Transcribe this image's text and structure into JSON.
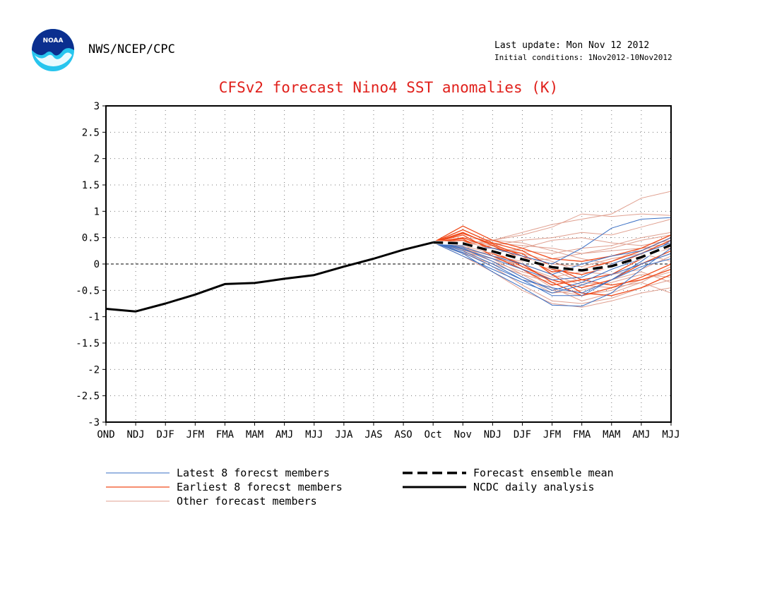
{
  "header": {
    "agency": "NWS/NCEP/CPC",
    "last_update": "Last update: Mon Nov 12 2012",
    "initial_conditions": "Initial conditions: 1Nov2012-10Nov2012",
    "logo_text": "NOAA"
  },
  "chart_data": {
    "type": "line",
    "title": "CFSv2 forecast Nino4 SST anomalies (K)",
    "xlabel": "",
    "ylabel": "",
    "x": [
      "OND",
      "NDJ",
      "DJF",
      "JFM",
      "FMA",
      "MAM",
      "AMJ",
      "MJJ",
      "JJA",
      "JAS",
      "ASO",
      "Oct",
      "Nov",
      "NDJ",
      "DJF",
      "JFM",
      "FMA",
      "MAM",
      "AMJ",
      "MJJ"
    ],
    "ylim": [
      -3,
      3
    ],
    "yticks": [
      "3",
      "2.5",
      "2",
      "1.5",
      "1",
      "0.5",
      "0",
      "-0.5",
      "-1",
      "-1.5",
      "-2",
      "-2.5",
      "-3"
    ],
    "grid": true,
    "legend_position": "bottom",
    "colors": {
      "latest": "#3a6fc4",
      "earliest": "#f04a1a",
      "other": "#e0a090",
      "mean": "#000000",
      "observed": "#000000",
      "title": "#e0201b"
    },
    "observed": {
      "name": "NCDC daily analysis",
      "x_start": 0,
      "values": [
        -0.85,
        -0.9,
        -0.75,
        -0.58,
        -0.38,
        -0.36,
        -0.28,
        -0.21,
        -0.05,
        0.1,
        0.27,
        0.41
      ]
    },
    "ensemble_mean": {
      "name": "Forecast ensemble mean",
      "x_start": 11,
      "values": [
        0.41,
        0.39,
        0.24,
        0.09,
        -0.06,
        -0.12,
        -0.04,
        0.13,
        0.36
      ]
    },
    "latest_members": {
      "name": "Latest 8 forecst members",
      "x_start": 11,
      "series": [
        [
          0.41,
          0.3,
          0.05,
          -0.25,
          -0.5,
          -0.35,
          -0.1,
          0.1,
          0.35
        ],
        [
          0.41,
          0.2,
          -0.15,
          -0.45,
          -0.78,
          -0.8,
          -0.55,
          -0.1,
          0.3
        ],
        [
          0.41,
          0.25,
          0.0,
          -0.3,
          -0.6,
          -0.6,
          -0.3,
          0.05,
          0.45
        ],
        [
          0.41,
          0.35,
          0.3,
          0.15,
          0.0,
          0.3,
          0.68,
          0.85,
          0.88
        ],
        [
          0.41,
          0.15,
          -0.1,
          -0.35,
          -0.55,
          -0.4,
          -0.2,
          0.0,
          0.2
        ],
        [
          0.41,
          0.28,
          0.1,
          -0.1,
          -0.3,
          -0.25,
          0.0,
          0.2,
          0.4
        ],
        [
          0.41,
          0.22,
          -0.05,
          -0.3,
          -0.45,
          -0.55,
          -0.3,
          -0.05,
          0.1
        ],
        [
          0.41,
          0.32,
          0.15,
          0.0,
          -0.2,
          0.0,
          0.15,
          0.25,
          0.5
        ]
      ]
    },
    "earliest_members": {
      "name": "Earliest 8 forecst members",
      "x_start": 11,
      "series": [
        [
          0.41,
          0.72,
          0.45,
          0.3,
          0.1,
          0.05,
          0.15,
          0.3,
          0.55
        ],
        [
          0.41,
          0.6,
          0.35,
          0.1,
          -0.1,
          -0.2,
          -0.05,
          0.2,
          0.45
        ],
        [
          0.41,
          0.55,
          0.25,
          -0.05,
          -0.3,
          -0.45,
          -0.3,
          0.0,
          0.25
        ],
        [
          0.41,
          0.5,
          0.3,
          0.2,
          -0.2,
          -0.55,
          -0.6,
          -0.45,
          -0.2
        ],
        [
          0.41,
          0.65,
          0.4,
          0.25,
          -0.05,
          -0.3,
          -0.4,
          -0.3,
          -0.1
        ],
        [
          0.41,
          0.45,
          0.2,
          0.0,
          -0.35,
          -0.6,
          -0.45,
          -0.25,
          0.0
        ],
        [
          0.41,
          0.58,
          0.38,
          0.15,
          -0.15,
          -0.1,
          0.05,
          0.25,
          0.5
        ],
        [
          0.41,
          0.48,
          0.15,
          -0.1,
          -0.4,
          -0.3,
          -0.2,
          0.1,
          0.35
        ]
      ]
    },
    "other_members": {
      "name": "Other forecast members",
      "x_start": 11,
      "series": [
        [
          0.41,
          0.35,
          0.45,
          0.6,
          0.75,
          0.85,
          0.95,
          1.25,
          1.38
        ],
        [
          0.41,
          0.4,
          0.45,
          0.55,
          0.7,
          0.95,
          0.9,
          0.95,
          0.92
        ],
        [
          0.41,
          0.3,
          0.35,
          0.45,
          0.5,
          0.6,
          0.55,
          0.7,
          0.85
        ],
        [
          0.41,
          0.25,
          0.2,
          0.3,
          0.45,
          0.5,
          0.4,
          0.35,
          0.45
        ],
        [
          0.41,
          0.42,
          0.3,
          0.25,
          0.2,
          0.3,
          0.35,
          0.5,
          0.6
        ],
        [
          0.41,
          0.3,
          0.15,
          0.05,
          0.1,
          0.2,
          0.3,
          0.45,
          0.55
        ],
        [
          0.41,
          0.2,
          0.0,
          -0.2,
          -0.35,
          -0.3,
          -0.2,
          0.0,
          0.2
        ],
        [
          0.41,
          0.25,
          -0.05,
          -0.4,
          -0.7,
          -0.75,
          -0.65,
          -0.45,
          -0.3
        ],
        [
          0.41,
          0.15,
          -0.15,
          -0.5,
          -0.75,
          -0.82,
          -0.7,
          -0.55,
          -0.45
        ],
        [
          0.41,
          0.35,
          0.2,
          -0.1,
          -0.45,
          -0.7,
          -0.55,
          -0.35,
          -0.05
        ],
        [
          0.41,
          0.3,
          0.1,
          -0.2,
          -0.5,
          -0.6,
          -0.5,
          -0.3,
          -0.1
        ],
        [
          0.41,
          0.45,
          0.35,
          0.2,
          0.05,
          -0.15,
          -0.2,
          -0.1,
          0.15
        ],
        [
          0.41,
          0.38,
          0.25,
          0.1,
          -0.1,
          -0.35,
          -0.4,
          -0.3,
          -0.15
        ],
        [
          0.41,
          0.28,
          0.05,
          -0.25,
          -0.55,
          -0.5,
          -0.35,
          -0.2,
          -0.25
        ],
        [
          0.41,
          0.33,
          0.15,
          -0.05,
          -0.25,
          -0.15,
          0.05,
          0.3,
          0.4
        ],
        [
          0.41,
          0.4,
          0.4,
          0.35,
          0.3,
          0.2,
          0.25,
          0.3,
          0.3
        ],
        [
          0.41,
          0.22,
          0.1,
          0.0,
          -0.2,
          -0.4,
          -0.45,
          -0.35,
          -0.55
        ],
        [
          0.41,
          0.36,
          0.3,
          0.15,
          0.0,
          -0.05,
          0.1,
          0.2,
          0.05
        ],
        [
          0.41,
          0.27,
          0.05,
          -0.15,
          -0.3,
          -0.45,
          -0.3,
          -0.15,
          -0.35
        ],
        [
          0.41,
          0.5,
          0.45,
          0.4,
          0.25,
          0.1,
          0.0,
          0.15,
          0.3
        ]
      ]
    }
  }
}
